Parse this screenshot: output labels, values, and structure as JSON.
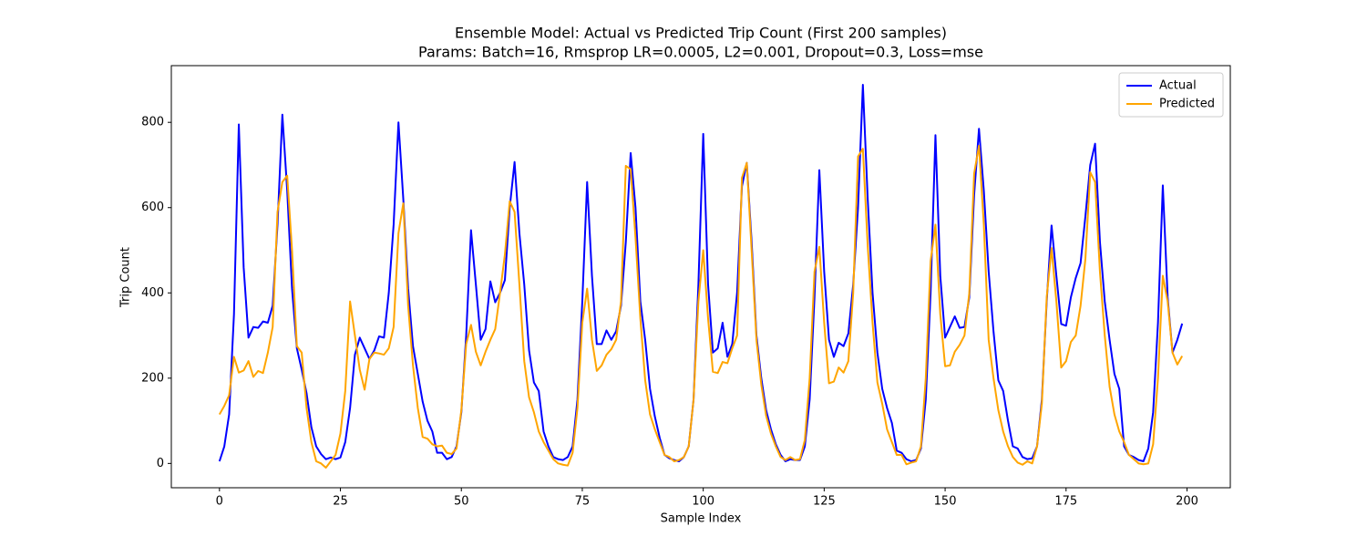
{
  "chart_data": {
    "type": "line",
    "title": "Ensemble Model: Actual vs Predicted Trip Count (First 200 samples)",
    "subtitle": "Params: Batch=16, Rmsprop LR=0.0005, L2=0.001, Dropout=0.3, Loss=mse",
    "x_label": "Sample Index",
    "y_label": "Trip Count",
    "x": [
      0,
      1,
      2,
      3,
      4,
      5,
      6,
      7,
      8,
      9,
      10,
      11,
      12,
      13,
      14,
      15,
      16,
      17,
      18,
      19,
      20,
      21,
      22,
      23,
      24,
      25,
      26,
      27,
      28,
      29,
      30,
      31,
      32,
      33,
      34,
      35,
      36,
      37,
      38,
      39,
      40,
      41,
      42,
      43,
      44,
      45,
      46,
      47,
      48,
      49,
      50,
      51,
      52,
      53,
      54,
      55,
      56,
      57,
      58,
      59,
      60,
      61,
      62,
      63,
      64,
      65,
      66,
      67,
      68,
      69,
      70,
      71,
      72,
      73,
      74,
      75,
      76,
      77,
      78,
      79,
      80,
      81,
      82,
      83,
      84,
      85,
      86,
      87,
      88,
      89,
      90,
      91,
      92,
      93,
      94,
      95,
      96,
      97,
      98,
      99,
      100,
      101,
      102,
      103,
      104,
      105,
      106,
      107,
      108,
      109,
      110,
      111,
      112,
      113,
      114,
      115,
      116,
      117,
      118,
      119,
      120,
      121,
      122,
      123,
      124,
      125,
      126,
      127,
      128,
      129,
      130,
      131,
      132,
      133,
      134,
      135,
      136,
      137,
      138,
      139,
      140,
      141,
      142,
      143,
      144,
      145,
      146,
      147,
      148,
      149,
      150,
      151,
      152,
      153,
      154,
      155,
      156,
      157,
      158,
      159,
      160,
      161,
      162,
      163,
      164,
      165,
      166,
      167,
      168,
      169,
      170,
      171,
      172,
      173,
      174,
      175,
      176,
      177,
      178,
      179,
      180,
      181,
      182,
      183,
      184,
      185,
      186,
      187,
      188,
      189,
      190,
      191,
      192,
      193,
      194,
      195,
      196,
      197,
      198,
      199
    ],
    "series": [
      {
        "name": "Actual",
        "color": "#0000ff",
        "values": [
          5,
          40,
          115,
          350,
          795,
          460,
          295,
          320,
          318,
          333,
          330,
          370,
          560,
          818,
          640,
          410,
          270,
          220,
          165,
          85,
          40,
          22,
          10,
          14,
          10,
          14,
          50,
          130,
          255,
          295,
          270,
          245,
          265,
          298,
          295,
          400,
          560,
          800,
          620,
          410,
          275,
          210,
          145,
          100,
          75,
          25,
          25,
          10,
          15,
          40,
          120,
          300,
          547,
          420,
          290,
          315,
          427,
          378,
          400,
          430,
          600,
          707,
          540,
          420,
          265,
          190,
          170,
          75,
          40,
          15,
          10,
          8,
          15,
          40,
          150,
          380,
          660,
          440,
          280,
          280,
          312,
          290,
          310,
          370,
          520,
          728,
          600,
          380,
          290,
          175,
          110,
          60,
          20,
          12,
          8,
          5,
          15,
          40,
          150,
          420,
          773,
          420,
          260,
          270,
          330,
          250,
          280,
          400,
          650,
          705,
          520,
          300,
          200,
          125,
          80,
          45,
          20,
          5,
          10,
          8,
          8,
          40,
          150,
          390,
          688,
          450,
          290,
          250,
          283,
          275,
          305,
          420,
          600,
          888,
          620,
          400,
          260,
          175,
          130,
          95,
          30,
          25,
          10,
          5,
          8,
          35,
          150,
          400,
          770,
          440,
          295,
          320,
          345,
          318,
          320,
          390,
          630,
          785,
          640,
          450,
          310,
          195,
          170,
          100,
          40,
          35,
          15,
          10,
          12,
          40,
          150,
          380,
          558,
          440,
          327,
          323,
          390,
          435,
          470,
          580,
          700,
          750,
          520,
          380,
          290,
          210,
          175,
          40,
          20,
          15,
          8,
          5,
          35,
          120,
          330,
          652,
          390,
          260,
          290,
          328
        ]
      },
      {
        "name": "Predicted",
        "color": "#ffa500",
        "values": [
          115,
          135,
          160,
          250,
          213,
          218,
          240,
          203,
          217,
          212,
          260,
          320,
          590,
          660,
          675,
          500,
          275,
          260,
          130,
          50,
          5,
          0,
          -10,
          5,
          20,
          70,
          170,
          380,
          300,
          220,
          173,
          245,
          260,
          258,
          255,
          270,
          320,
          540,
          610,
          370,
          230,
          130,
          62,
          58,
          45,
          40,
          42,
          25,
          22,
          35,
          125,
          280,
          325,
          262,
          230,
          262,
          290,
          315,
          400,
          490,
          615,
          590,
          420,
          240,
          155,
          120,
          75,
          50,
          30,
          10,
          0,
          -3,
          -5,
          25,
          130,
          330,
          410,
          290,
          217,
          230,
          255,
          268,
          290,
          380,
          698,
          690,
          530,
          340,
          195,
          115,
          80,
          50,
          20,
          15,
          5,
          8,
          15,
          40,
          150,
          380,
          500,
          340,
          215,
          212,
          238,
          235,
          270,
          300,
          670,
          705,
          500,
          290,
          185,
          112,
          70,
          40,
          15,
          8,
          15,
          8,
          10,
          55,
          200,
          450,
          508,
          330,
          188,
          192,
          225,
          213,
          240,
          400,
          720,
          738,
          510,
          330,
          190,
          140,
          80,
          50,
          20,
          20,
          -2,
          2,
          5,
          40,
          200,
          475,
          560,
          350,
          228,
          230,
          262,
          278,
          300,
          400,
          680,
          745,
          560,
          290,
          200,
          125,
          75,
          40,
          15,
          2,
          -3,
          5,
          0,
          40,
          140,
          390,
          505,
          380,
          225,
          240,
          285,
          300,
          370,
          480,
          683,
          660,
          450,
          300,
          180,
          115,
          75,
          50,
          20,
          10,
          0,
          -2,
          0,
          45,
          200,
          440,
          380,
          260,
          232,
          252
        ]
      }
    ],
    "xlim": [
      -9.95,
      208.95
    ],
    "xticks": [
      0,
      25,
      50,
      75,
      100,
      125,
      150,
      175,
      200
    ],
    "ylim": [
      -57,
      933
    ],
    "yticks": [
      0,
      200,
      400,
      600,
      800
    ],
    "grid": false,
    "legend": "upper-right"
  }
}
